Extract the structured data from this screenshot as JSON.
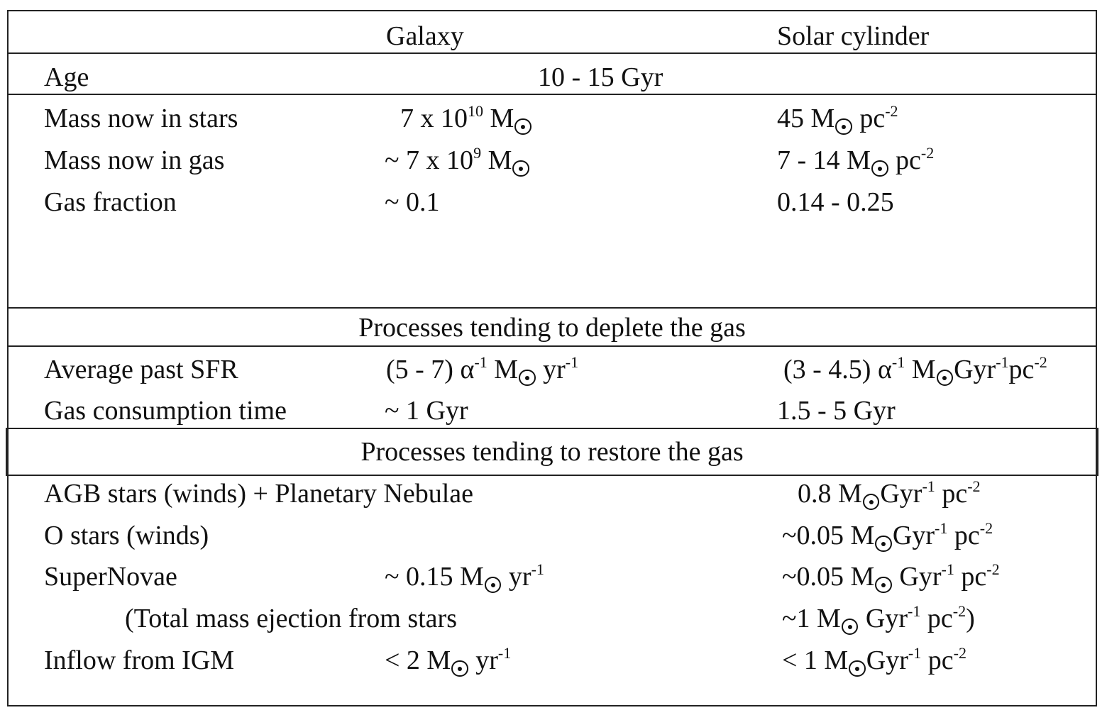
{
  "sun_symbol_name": "sun-symbol-icon",
  "header": {
    "col1": "",
    "col2": "Galaxy",
    "col3": "Solar cylinder"
  },
  "age": {
    "label": "Age",
    "value": "10 - 15 Gyr"
  },
  "mass_stars": {
    "label": "Mass now in stars",
    "galaxy": {
      "pre": "7 x 10",
      "exp": "10",
      "unit": "M"
    },
    "solar": {
      "pre": "45 M",
      "post": " pc",
      "exp": "-2"
    }
  },
  "mass_gas": {
    "label": "Mass now in gas",
    "galaxy": {
      "pre": "~ 7 x 10",
      "exp": "9",
      "unit": "M"
    },
    "solar": {
      "pre": "7 - 14 M",
      "post": " pc",
      "exp": "-2"
    }
  },
  "gas_fraction": {
    "label": "Gas fraction",
    "galaxy": "~ 0.1",
    "solar": "0.14 - 0.25"
  },
  "section_deplete": "Processes tending to deplete the gas",
  "avg_sfr": {
    "label": "Average past SFR",
    "galaxy": {
      "pre": "(5 - 7) α",
      "e1": "-1",
      "m": " M",
      "yr": " yr",
      "e2": "-1"
    },
    "solar": {
      "pre": "(3 - 4.5) α",
      "e1": "-1",
      "m": " M",
      "gyr": "Gyr",
      "e2": "-1",
      "pc": "pc",
      "e3": "-2"
    }
  },
  "gas_time": {
    "label": "Gas consumption time",
    "galaxy": "~ 1 Gyr",
    "solar": "1.5 - 5 Gyr"
  },
  "section_restore": "Processes tending to restore the gas",
  "agb": {
    "label": "AGB stars (winds) + Planetary Nebulae",
    "solar": {
      "pre": "0.8 M",
      "gyr": "Gyr",
      "e1": "-1",
      "pc": " pc",
      "e2": "-2"
    }
  },
  "ostars": {
    "label": "O stars (winds)",
    "solar": {
      "pre": "~0.05 M",
      "gyr": "Gyr",
      "e1": "-1",
      "pc": " pc",
      "e2": "-2"
    }
  },
  "sn": {
    "label": "SuperNovae",
    "galaxy": {
      "pre": "~ 0.15 M",
      "yr": " yr",
      "e1": "-1"
    },
    "solar": {
      "pre": "~0.05 M",
      "gyr": " Gyr",
      "e1": "-1",
      "pc": " pc",
      "e2": "-2"
    }
  },
  "total": {
    "label": "(Total mass ejection from stars",
    "solar": {
      "pre": "~1 M",
      "gyr": " Gyr",
      "e1": "-1",
      "pc": " pc",
      "e2": "-2",
      "close": ")"
    }
  },
  "inflow": {
    "label": "Inflow from IGM",
    "galaxy": {
      "pre": "< 2 M",
      "yr": " yr",
      "e1": "-1"
    },
    "solar": {
      "pre": "< 1 M",
      "gyr": "Gyr",
      "e1": "-1",
      "pc": " pc",
      "e2": "-2"
    }
  }
}
